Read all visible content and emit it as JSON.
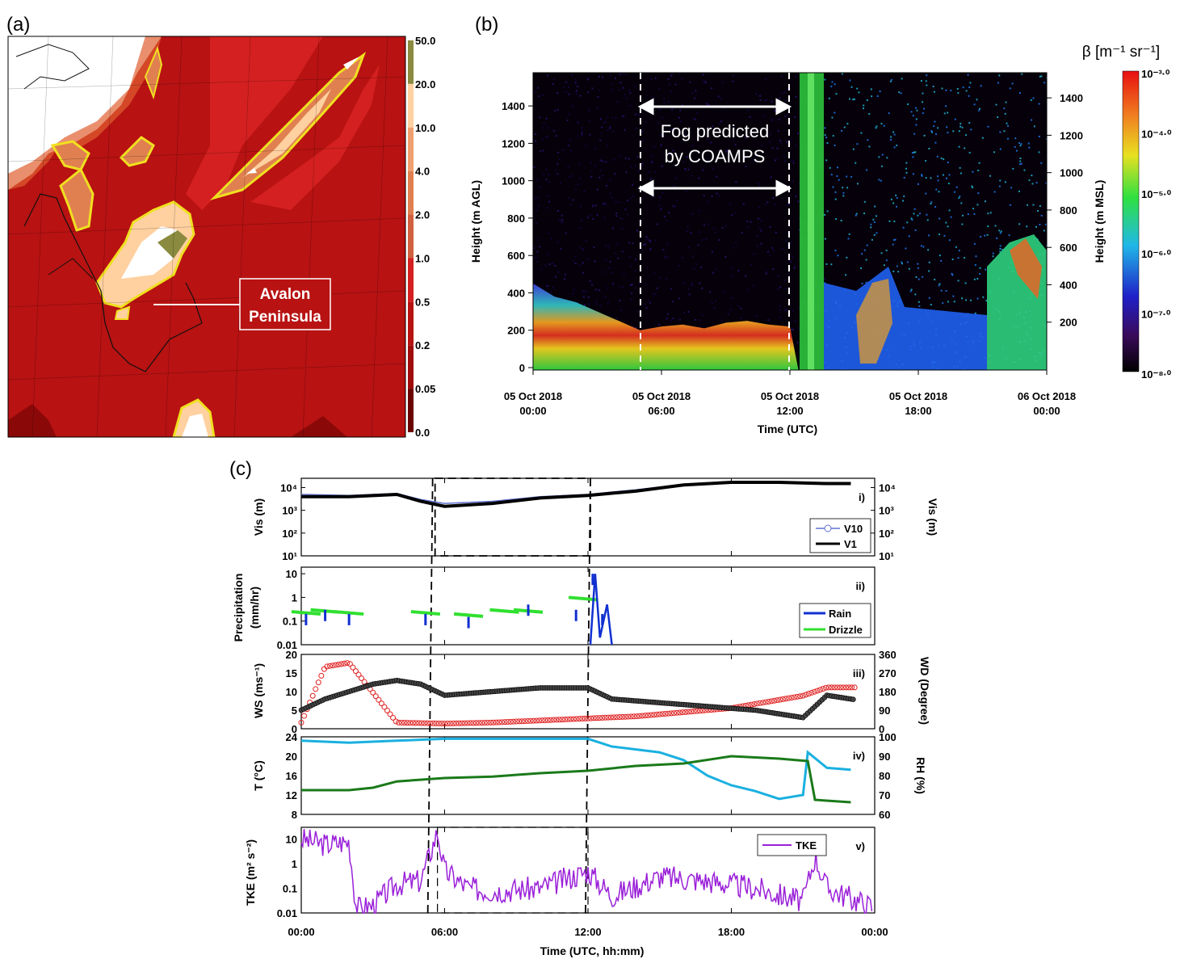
{
  "panel_labels": {
    "a": "(a)",
    "b": "(b)",
    "c": "(c)"
  },
  "panel_a": {
    "annotation": [
      "Avalon",
      "Peninsula"
    ],
    "colorbar_ticks": [
      "50.0",
      "20.0",
      "10.0",
      "4.0",
      "2.0",
      "1.0",
      "0.5",
      "0.2",
      "0.05",
      "0.0"
    ],
    "colorbar_colors": [
      "#8a8a40",
      "#ffd0a0",
      "#f0a070",
      "#e08050",
      "#d06040",
      "#d42020",
      "#b81212",
      "#a00c0c",
      "#6a0202"
    ]
  },
  "panel_b": {
    "ylabel_left": "Height (m AGL)",
    "ylabel_right": "Height (m MSL)",
    "xlabel": "Time (UTC)",
    "colorbar_title": "β [m⁻¹ sr⁻¹]",
    "colorbar_ticks": [
      "10⁻³·⁰",
      "10⁻⁴·⁰",
      "10⁻⁵·⁰",
      "10⁻⁶·⁰",
      "10⁻⁷·⁰",
      "10⁻⁸·⁰"
    ],
    "annotation": [
      "Fog predicted",
      "by COAMPS"
    ],
    "fog_window_hours": [
      5,
      12
    ]
  },
  "chart_data": [
    {
      "type": "heatmap",
      "title": "",
      "xlabel": "Time (UTC)",
      "ylabel": "Height (m AGL)",
      "ylabel_right": "Height (m MSL)",
      "x_ticks": [
        {
          "line1": "05 Oct 2018",
          "line2": "00:00",
          "hour": 0
        },
        {
          "line1": "05 Oct 2018",
          "line2": "06:00",
          "hour": 6
        },
        {
          "line1": "05 Oct 2018",
          "line2": "12:00",
          "hour": 12
        },
        {
          "line1": "05 Oct 2018",
          "line2": "18:00",
          "hour": 18
        },
        {
          "line1": "06 Oct 2018",
          "line2": "00:00",
          "hour": 24
        }
      ],
      "xlim": [
        0,
        24
      ],
      "ylim": [
        0,
        1500
      ],
      "y_ticks": [
        0,
        200,
        400,
        600,
        800,
        1000,
        1200,
        1400
      ],
      "y_ticks_right": [
        200,
        400,
        600,
        800,
        1000,
        1200,
        1400
      ],
      "layer_top_hours": [
        0,
        1,
        2,
        3,
        4,
        5,
        6,
        7,
        8,
        9,
        10,
        11,
        12
      ],
      "layer_top_m": [
        450,
        380,
        350,
        300,
        250,
        200,
        220,
        230,
        210,
        240,
        250,
        230,
        220
      ]
    },
    {
      "type": "line",
      "title": "",
      "panel": "i)",
      "ylabel": "Vis (m)",
      "ylabel_right": "Vis (m)",
      "log_scale": true,
      "ylim": [
        10,
        20000
      ],
      "series": [
        {
          "name": "V10",
          "hours": [
            0,
            2,
            4,
            5,
            6,
            8,
            10,
            12,
            14,
            16,
            18,
            20,
            22,
            23
          ],
          "values": [
            5000,
            4500,
            5500,
            3000,
            2000,
            2500,
            4000,
            5000,
            8000,
            14000,
            18000,
            18000,
            16000,
            16000
          ]
        },
        {
          "name": "V1",
          "hours": [
            0,
            2,
            4,
            5,
            6,
            8,
            10,
            12,
            14,
            16,
            18,
            20,
            22,
            23
          ],
          "values": [
            4000,
            4000,
            5000,
            2500,
            1500,
            2000,
            3500,
            4500,
            7000,
            13000,
            17000,
            17000,
            15000,
            15000
          ]
        }
      ]
    },
    {
      "type": "line",
      "title": "",
      "panel": "ii)",
      "ylabel": "Precipitation (mm/hr)",
      "log_scale": true,
      "ylim": [
        0.01,
        15
      ],
      "series": [
        {
          "name": "Rain",
          "hours": [
            0.2,
            1.0,
            2.0,
            5.2,
            7.0,
            9.5,
            11.5,
            12.2,
            12.6
          ],
          "values": [
            0.2,
            0.3,
            0.2,
            0.2,
            0.15,
            0.5,
            0.3,
            10,
            0.2
          ]
        },
        {
          "name": "Drizzle",
          "hours": [
            0.2,
            1.0,
            2.0,
            5.2,
            7.0,
            8.5,
            9.5,
            11.8
          ],
          "values": [
            0.25,
            0.3,
            0.25,
            0.25,
            0.2,
            0.3,
            0.3,
            1.0
          ]
        }
      ]
    },
    {
      "type": "scatter",
      "title": "",
      "panel": "iii)",
      "ylabel": "WS (ms⁻¹)",
      "ylabel_right": "WD (Degree)",
      "ylim": [
        0,
        20
      ],
      "ylim_right": [
        0,
        360
      ],
      "series": [
        {
          "name": "WS",
          "hours": [
            0,
            1,
            2,
            3,
            4,
            5,
            6,
            8,
            10,
            12,
            13,
            15,
            17,
            19,
            21,
            22,
            23
          ],
          "values": [
            5,
            8,
            10,
            12,
            13,
            12,
            9,
            10,
            11,
            11,
            8,
            7,
            6,
            5,
            3,
            9,
            8
          ]
        },
        {
          "name": "WD",
          "hours": [
            0,
            1,
            2,
            4,
            6,
            8,
            10,
            12,
            14,
            16,
            18,
            20,
            21,
            22,
            23
          ],
          "values": [
            30,
            300,
            320,
            30,
            25,
            30,
            40,
            50,
            60,
            80,
            100,
            140,
            160,
            200,
            200
          ]
        }
      ]
    },
    {
      "type": "line",
      "title": "",
      "panel": "iv)",
      "ylabel": "T (°C)",
      "ylabel_right": "RH (%)",
      "ylim": [
        8,
        24
      ],
      "ylim_right": [
        60,
        100
      ],
      "series": [
        {
          "name": "T",
          "hours": [
            0,
            2,
            3,
            4,
            6,
            8,
            10,
            12,
            14,
            16,
            18,
            20,
            21.2,
            21.5,
            23
          ],
          "values": [
            13,
            13,
            13.5,
            14.8,
            15.5,
            15.8,
            16.5,
            17,
            18,
            18.5,
            20,
            19.5,
            19,
            11,
            10.5
          ]
        },
        {
          "name": "RH",
          "hours": [
            0,
            2,
            4,
            6,
            8,
            10,
            12,
            13,
            15,
            16,
            17,
            18,
            19,
            20,
            21,
            21.2,
            22,
            23
          ],
          "values": [
            98,
            97,
            98,
            99,
            99,
            99,
            99,
            95,
            92,
            88,
            80,
            75,
            72,
            68,
            70,
            92,
            84,
            83
          ]
        }
      ]
    },
    {
      "type": "line",
      "title": "",
      "panel": "v)",
      "ylabel": "TKE (m² s⁻²)",
      "log_scale": true,
      "ylim": [
        0.01,
        30
      ],
      "series": [
        {
          "name": "TKE",
          "hours": [
            0,
            1,
            2,
            2.3,
            3,
            4,
            5,
            5.7,
            6,
            7,
            8,
            10,
            12,
            13,
            15,
            17,
            19,
            21,
            21.5,
            22,
            23
          ],
          "values": [
            10,
            6,
            8,
            0.015,
            0.02,
            0.15,
            0.2,
            20,
            0.5,
            0.1,
            0.08,
            0.1,
            0.5,
            0.05,
            0.3,
            0.2,
            0.1,
            0.03,
            2,
            0.1,
            0.04
          ]
        }
      ]
    }
  ],
  "panel_c": {
    "xlabel": "Time (UTC, hh:mm)",
    "x_ticks": [
      "00:00",
      "06:00",
      "12:00",
      "18:00",
      "00:00"
    ],
    "vis_ticks": [
      "10⁴",
      "10³",
      "10²",
      "10¹"
    ],
    "precip_ticks": [
      "10",
      "1",
      "0.1",
      "0.01"
    ],
    "ws_ticks": [
      "20",
      "15",
      "10",
      "5",
      "0"
    ],
    "wd_ticks": [
      "360",
      "270",
      "180",
      "90",
      "0"
    ],
    "t_ticks": [
      "24",
      "20",
      "16",
      "12",
      "8"
    ],
    "rh_ticks": [
      "100",
      "90",
      "80",
      "70",
      "60"
    ],
    "tke_ticks": [
      "10",
      "1",
      "0.1",
      "0.01"
    ],
    "legends": {
      "v10": "V10",
      "v1": "V1",
      "rain": "Rain",
      "drizzle": "Drizzle",
      "tke": "TKE"
    },
    "panel_tags": [
      "i)",
      "ii)",
      "iii)",
      "iv)",
      "v)"
    ],
    "colors": {
      "ws": "#000000",
      "wd": "#e02020",
      "t": "#1a7a1a",
      "rh": "#1ab0e0",
      "rain": "#1030d0",
      "drizzle": "#30e030",
      "tke": "#9a20d8",
      "v10": "#6070d0"
    }
  }
}
